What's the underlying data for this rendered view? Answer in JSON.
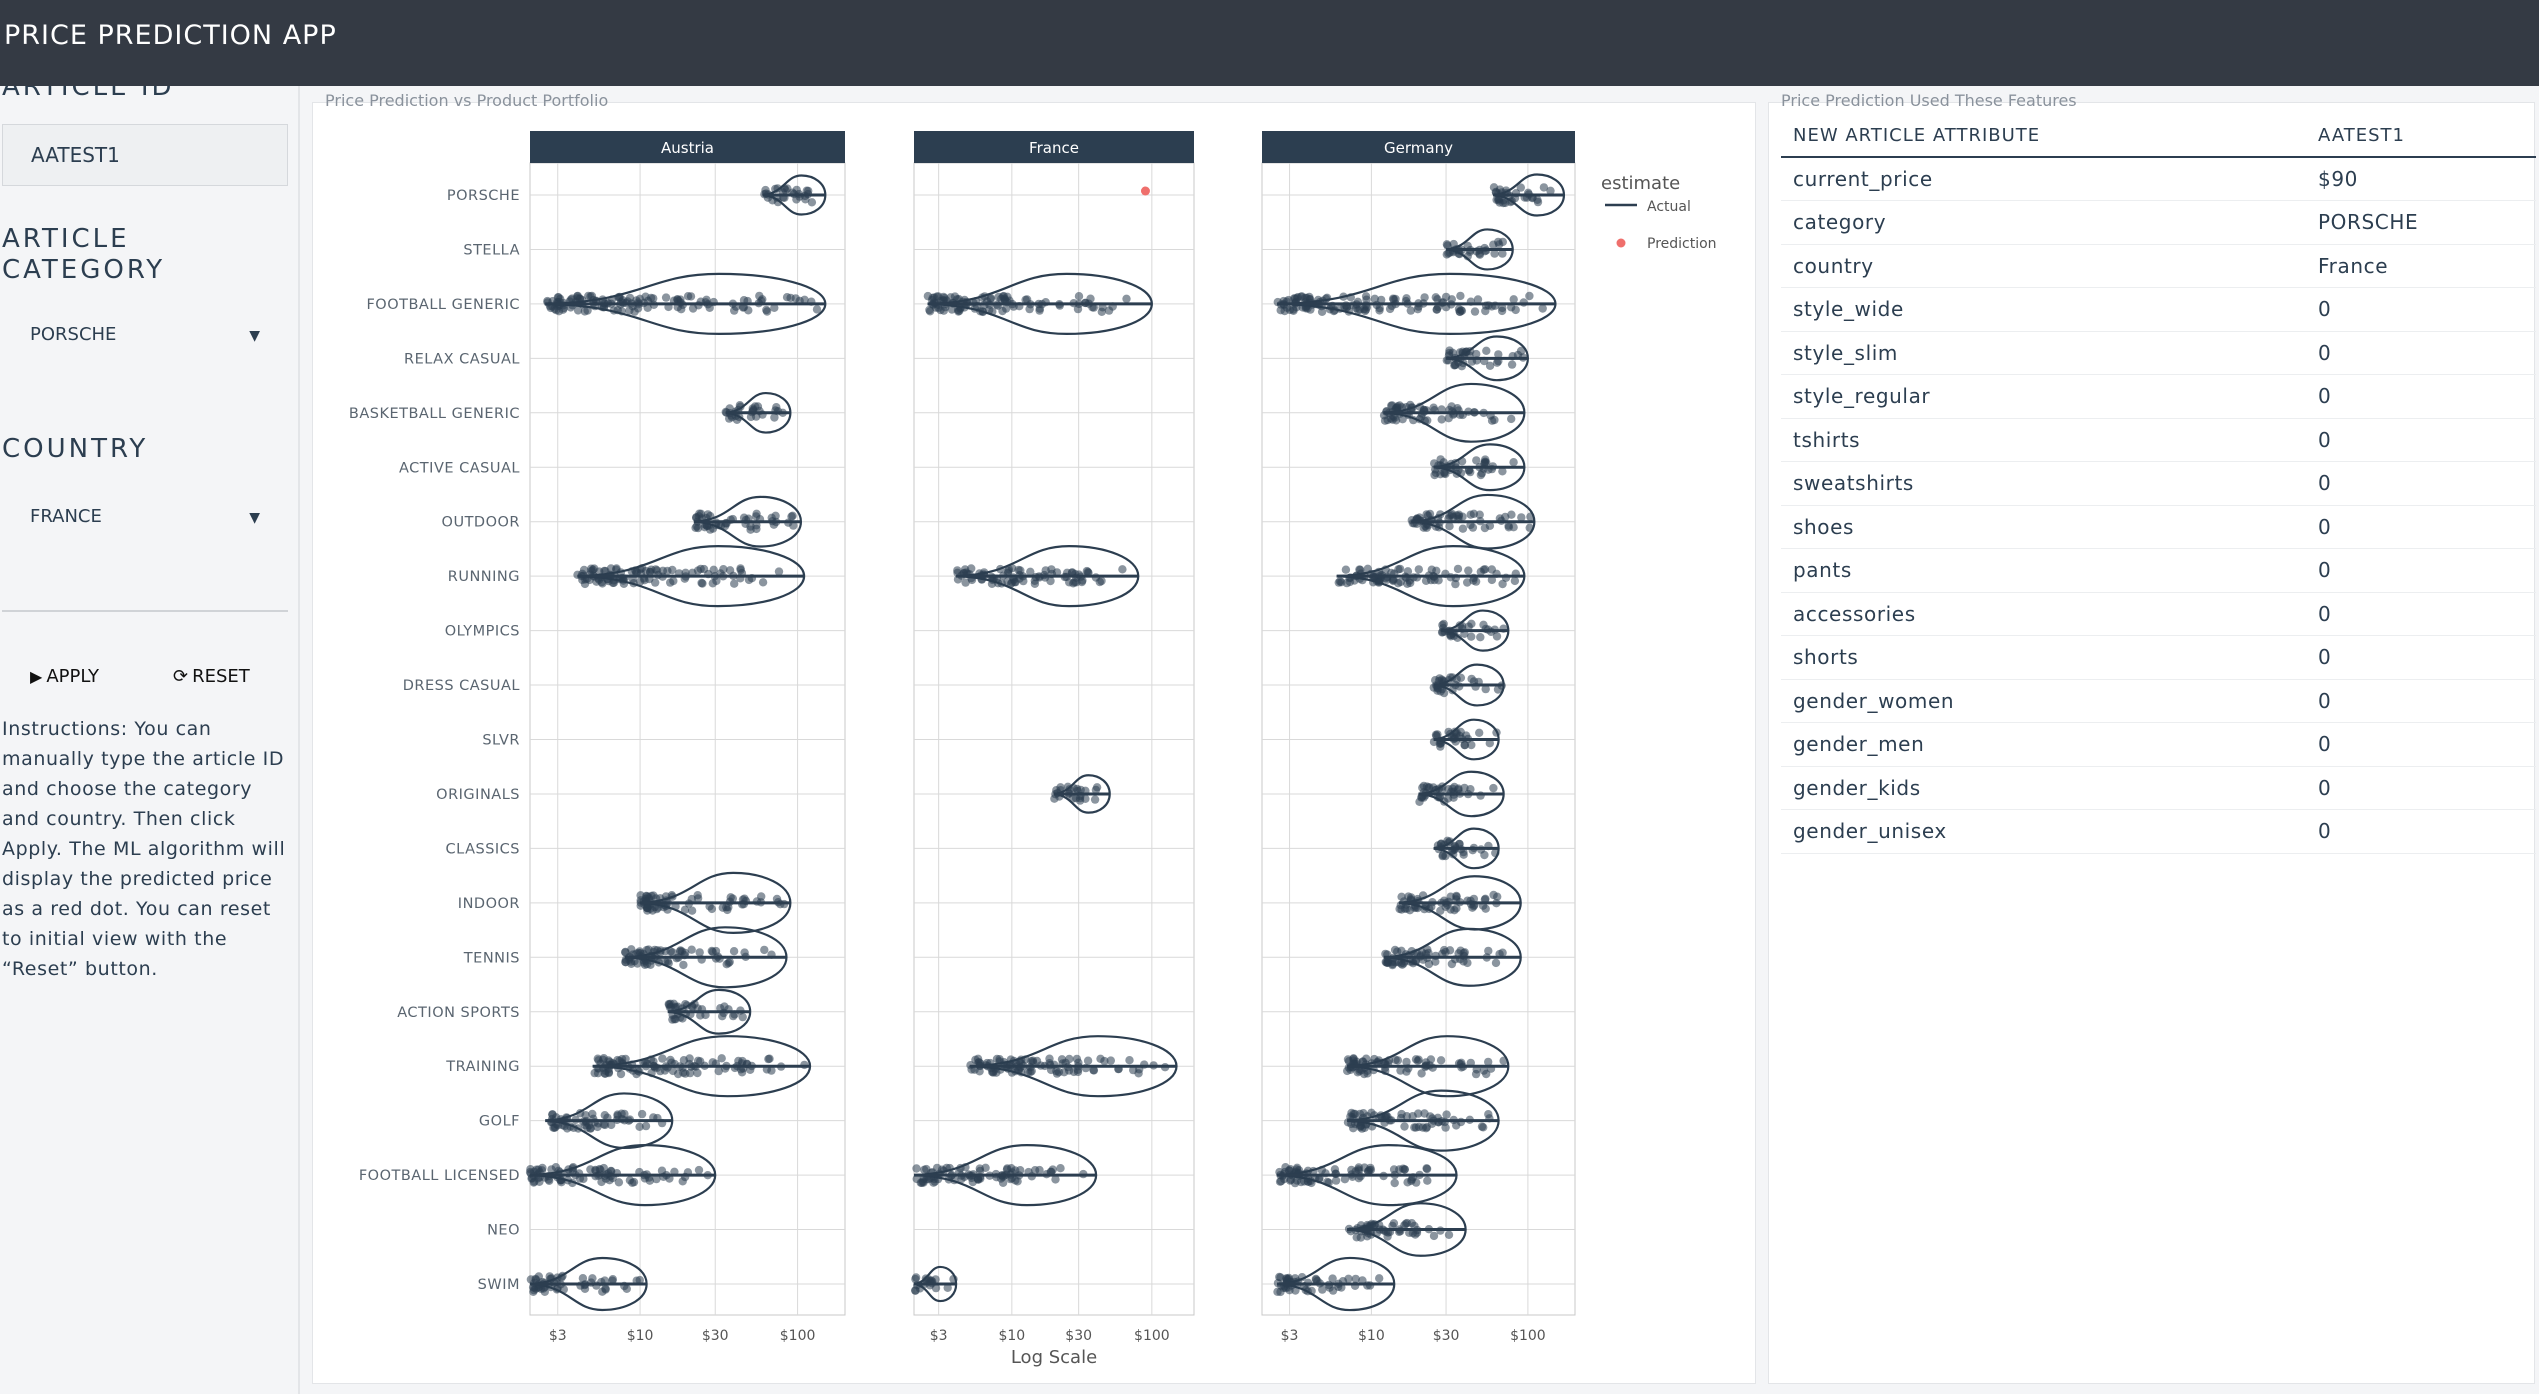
{
  "app": {
    "title": "PRICE PREDICTION APP"
  },
  "sidebar": {
    "article_id_label": "ARTICLE ID",
    "article_id_value": "AATEST1",
    "category_label_line1": "ARTICLE",
    "category_label_line2": "CATEGORY",
    "category_value": "PORSCHE",
    "country_label": "COUNTRY",
    "country_value": "FRANCE",
    "apply_label": "APPLY",
    "reset_label": "RESET",
    "instructions": "Instructions: You can manually type the article ID and choose the category and country. Then click Apply. The ML algorithm will display the predicted price as a red dot. You can reset to initial view with the “Reset” button."
  },
  "chart_panel": {
    "title": "Price Prediction vs Product Portfolio"
  },
  "table_panel": {
    "title": "Price Prediction Used These Features"
  },
  "chart_data": {
    "type": "violin",
    "xlabel": "Log Scale",
    "x_scale": "log",
    "x_ticks": [
      3,
      10,
      30,
      100
    ],
    "x_tick_labels": [
      "$3",
      "$10",
      "$30",
      "$100"
    ],
    "facets": [
      "Austria",
      "France",
      "Germany"
    ],
    "categories": [
      "PORSCHE",
      "STELLA",
      "FOOTBALL GENERIC",
      "RELAX CASUAL",
      "BASKETBALL GENERIC",
      "ACTIVE CASUAL",
      "OUTDOOR",
      "RUNNING",
      "OLYMPICS",
      "DRESS CASUAL",
      "SLVR",
      "ORIGINALS",
      "CLASSICS",
      "INDOOR",
      "TENNIS",
      "ACTION SPORTS",
      "TRAINING",
      "GOLF",
      "FOOTBALL LICENSED",
      "NEO",
      "SWIM"
    ],
    "legend": {
      "title": "estimate",
      "entries": [
        "Actual",
        "Prediction"
      ],
      "placement": "right"
    },
    "colors": {
      "actual": "#2c3e50",
      "prediction": "#ef6f6c",
      "facet_strip": "#2c3e50",
      "grid": "#d9d9d9"
    },
    "series": [
      {
        "name": "Actual",
        "facet": "Austria",
        "ranges": {
          "PORSCHE": [
            60,
            150
          ],
          "FOOTBALL GENERIC": [
            2.5,
            150
          ],
          "BASKETBALL GENERIC": [
            35,
            90
          ],
          "OUTDOOR": [
            22,
            105
          ],
          "RUNNING": [
            4,
            110
          ],
          "INDOOR": [
            10,
            90
          ],
          "TENNIS": [
            8,
            85
          ],
          "ACTION SPORTS": [
            15,
            50
          ],
          "TRAINING": [
            5,
            120
          ],
          "GOLF": [
            2.5,
            16
          ],
          "FOOTBALL LICENSED": [
            2,
            30
          ],
          "SWIM": [
            2,
            11
          ]
        }
      },
      {
        "name": "Actual",
        "facet": "France",
        "ranges": {
          "FOOTBALL GENERIC": [
            2.5,
            100
          ],
          "RUNNING": [
            4,
            80
          ],
          "ORIGINALS": [
            20,
            50
          ],
          "TRAINING": [
            5,
            150
          ],
          "FOOTBALL LICENSED": [
            2,
            40
          ],
          "SWIM": [
            2,
            4
          ]
        }
      },
      {
        "name": "Actual",
        "facet": "Germany",
        "ranges": {
          "PORSCHE": [
            60,
            170
          ],
          "STELLA": [
            30,
            80
          ],
          "FOOTBALL GENERIC": [
            2.5,
            150
          ],
          "RELAX CASUAL": [
            30,
            100
          ],
          "BASKETBALL GENERIC": [
            12,
            95
          ],
          "ACTIVE CASUAL": [
            25,
            95
          ],
          "OUTDOOR": [
            18,
            110
          ],
          "RUNNING": [
            6,
            95
          ],
          "OLYMPICS": [
            28,
            75
          ],
          "DRESS CASUAL": [
            25,
            70
          ],
          "SLVR": [
            25,
            65
          ],
          "ORIGINALS": [
            20,
            70
          ],
          "CLASSICS": [
            25,
            65
          ],
          "INDOOR": [
            15,
            90
          ],
          "TENNIS": [
            12,
            90
          ],
          "TRAINING": [
            7,
            75
          ],
          "GOLF": [
            7,
            65
          ],
          "FOOTBALL LICENSED": [
            2.5,
            35
          ],
          "NEO": [
            7,
            40
          ],
          "SWIM": [
            2.5,
            14
          ]
        }
      },
      {
        "name": "Prediction",
        "facet": "France",
        "category": "PORSCHE",
        "value": 90
      }
    ]
  },
  "attributes": {
    "headers": [
      "NEW ARTICLE ATTRIBUTE",
      "AATEST1"
    ],
    "rows": [
      [
        "current_price",
        "$90"
      ],
      [
        "category",
        "PORSCHE"
      ],
      [
        "country",
        "France"
      ],
      [
        "style_wide",
        "0"
      ],
      [
        "style_slim",
        "0"
      ],
      [
        "style_regular",
        "0"
      ],
      [
        "tshirts",
        "0"
      ],
      [
        "sweatshirts",
        "0"
      ],
      [
        "shoes",
        "0"
      ],
      [
        "pants",
        "0"
      ],
      [
        "accessories",
        "0"
      ],
      [
        "shorts",
        "0"
      ],
      [
        "gender_women",
        "0"
      ],
      [
        "gender_men",
        "0"
      ],
      [
        "gender_kids",
        "0"
      ],
      [
        "gender_unisex",
        "0"
      ]
    ]
  }
}
